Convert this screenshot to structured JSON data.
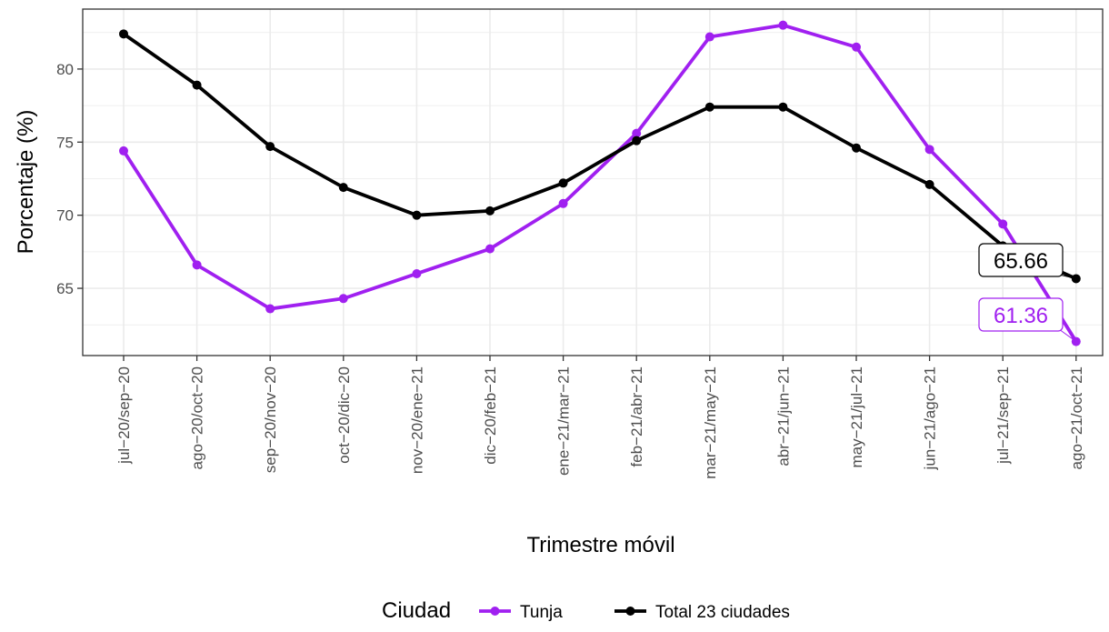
{
  "chart_data": {
    "type": "line",
    "xlabel": "Trimestre móvil",
    "ylabel": "Porcentaje (%)",
    "categories": [
      "jul−20/sep−20",
      "ago−20/oct−20",
      "sep−20/nov−20",
      "oct−20/dic−20",
      "nov−20/ene−21",
      "dic−20/feb−21",
      "ene−21/mar−21",
      "feb−21/abr−21",
      "mar−21/may−21",
      "abr−21/jun−21",
      "may−21/jul−21",
      "jun−21/ago−21",
      "jul−21/sep−21",
      "ago−21/oct−21"
    ],
    "ylim": [
      60.4,
      84.1
    ],
    "yticks": [
      65,
      70,
      75,
      80
    ],
    "grid": true,
    "legend": {
      "title": "Ciudad",
      "position": "bottom"
    },
    "series": [
      {
        "name": "Tunja",
        "color": "#a020f0",
        "values": [
          74.4,
          66.6,
          63.6,
          64.3,
          66.0,
          67.7,
          70.8,
          75.6,
          82.2,
          83.0,
          81.5,
          74.5,
          69.4,
          61.36
        ],
        "end_label": "61.36"
      },
      {
        "name": "Total 23 ciudades",
        "color": "#000000",
        "values": [
          82.4,
          78.9,
          74.7,
          71.9,
          70.0,
          70.3,
          72.2,
          75.1,
          77.4,
          77.4,
          74.6,
          72.1,
          67.9,
          65.66
        ],
        "end_label": "65.66"
      }
    ]
  }
}
